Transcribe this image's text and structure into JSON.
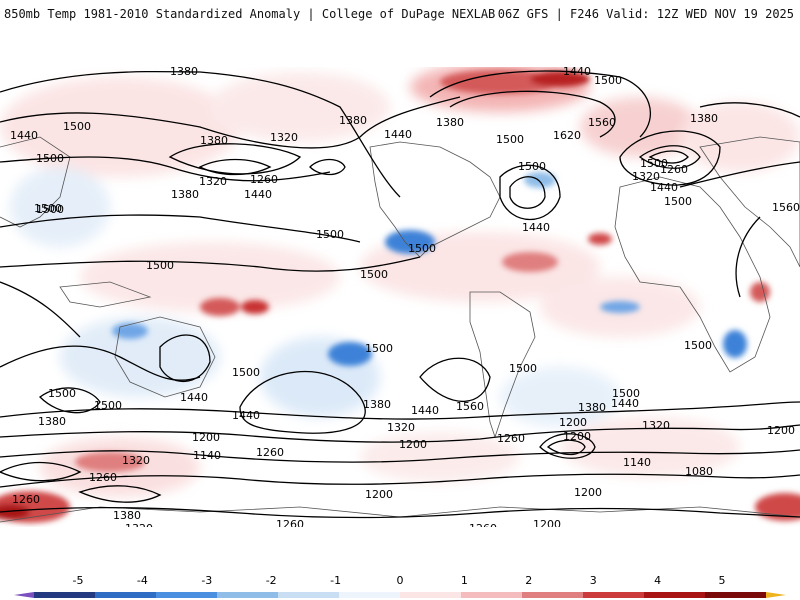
{
  "header": {
    "left_title": "850mb Temp 1981-2010 Standardized Anomaly | College of DuPage NEXLAB",
    "right_title": "06Z GFS | F246 Valid: 12Z WED NOV 19 2025"
  },
  "contour_labels": [
    "1380",
    "1380",
    "1440",
    "1500",
    "1500",
    "1380",
    "1320",
    "1380",
    "1440",
    "1260",
    "1320",
    "1500",
    "1440",
    "1500",
    "1380",
    "1500",
    "1440",
    "1500",
    "1440",
    "1560",
    "1620",
    "1500",
    "1380",
    "1500",
    "1260",
    "1320",
    "1440",
    "1500",
    "1560",
    "1500",
    "1500",
    "1500",
    "1500",
    "1500",
    "1500",
    "1500",
    "1500",
    "1440",
    "1440",
    "1380",
    "1560",
    "1440",
    "1500",
    "1500",
    "1380",
    "1440",
    "1200",
    "1260",
    "1380",
    "1500",
    "1320",
    "1200",
    "1200",
    "1320",
    "1320",
    "1260",
    "1140",
    "1260",
    "1200",
    "1140",
    "1080",
    "1260",
    "1380",
    "1200",
    "1320",
    "1200",
    "1260",
    "1200",
    "1260",
    "1200"
  ],
  "colorbar": {
    "ticks": [
      "-5",
      "-4",
      "-3",
      "-2",
      "-1",
      "0",
      "1",
      "2",
      "3",
      "4",
      "5"
    ],
    "colors": [
      "#7b4fbf",
      "#243a80",
      "#2f6cc4",
      "#4a8fe0",
      "#8fbde8",
      "#c9def3",
      "#eef4fb",
      "#fbe5e5",
      "#f4bcbc",
      "#e07f7f",
      "#cc3b3b",
      "#a81414",
      "#7a0a0a",
      "#f0b320"
    ]
  }
}
